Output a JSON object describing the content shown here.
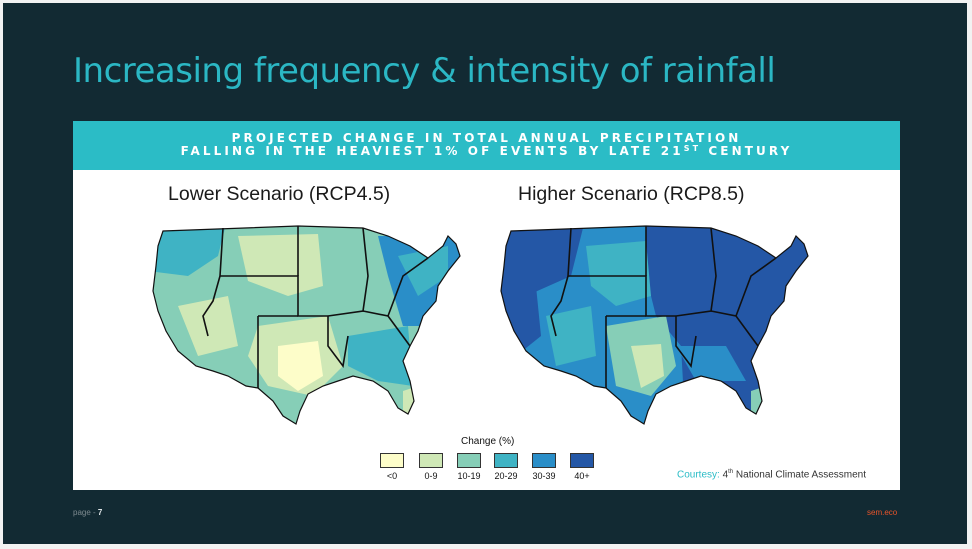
{
  "slide": {
    "title": "Increasing frequency & intensity of rainfall",
    "page_label": "page -",
    "page_number": "7",
    "brand": "sem.eco",
    "background_color": "#122a33",
    "title_color": "#2bb7c4",
    "brand_color": "#e8542a"
  },
  "figure": {
    "banner_line1": "PROJECTED CHANGE IN TOTAL ANNUAL PRECIPITATION",
    "banner_line2_pre": "FALLING IN THE HEAVIEST 1% OF EVENTS BY LATE 21",
    "banner_line2_sup": "ST",
    "banner_line2_post": " CENTURY",
    "banner_color": "#2bbcc6",
    "maps": [
      {
        "title": "Lower Scenario (RCP4.5)"
      },
      {
        "title": "Higher Scenario (RCP8.5)"
      }
    ],
    "legend": {
      "title": "Change (%)",
      "items": [
        {
          "label": "<0",
          "color": "#fdfdc9"
        },
        {
          "label": "0-9",
          "color": "#cfe8b6"
        },
        {
          "label": "10-19",
          "color": "#86ceb7"
        },
        {
          "label": "20-29",
          "color": "#3fb3c4"
        },
        {
          "label": "30-39",
          "color": "#2a8ec8"
        },
        {
          "label": "40+",
          "color": "#2457a6"
        }
      ]
    },
    "courtesy": {
      "label": "Courtesy:",
      "sup": "th",
      "pre": "4",
      "text": " National Climate Assessment"
    }
  }
}
